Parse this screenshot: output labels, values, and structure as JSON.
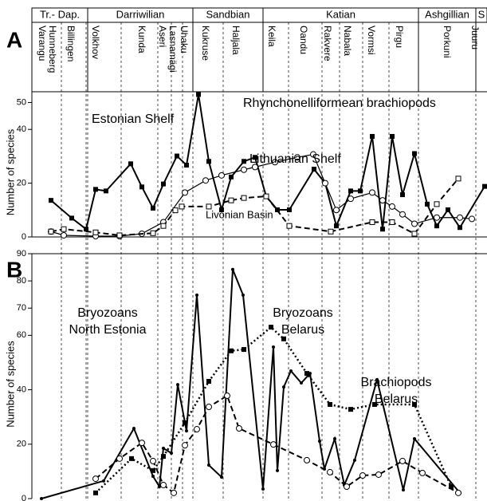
{
  "stages": [
    "Tr.- Dap.",
    "Darriwilian",
    "Sandbian",
    "Katian",
    "Ashgillian",
    "S"
  ],
  "regional_stages": [
    "Varangu",
    "Hunneberg",
    "Billingen",
    "Volkhov",
    "Kunda",
    "Aseri",
    "Lasnamägi",
    "Uhaku",
    "Kukruse",
    "Haljala",
    "Keila",
    "Oandu",
    "Rakvere",
    "Nabala",
    "Vormsi",
    "Pirgu",
    "Porkuni",
    "Juuru"
  ],
  "chart_data": [
    {
      "type": "line",
      "panel_label": "A",
      "ylabel": "Number of species",
      "title": "Rhynchonelliformean brachiopods",
      "xlim": [
        40,
        611
      ],
      "ylim": [
        0,
        54
      ],
      "yticks": [
        0,
        20,
        40,
        50
      ],
      "series": [
        {
          "name": "Estonian Shelf",
          "color": "#000000",
          "line_style": "solid",
          "marker": "filled-square",
          "x": [
            64,
            90,
            108,
            120,
            133,
            164,
            178,
            192,
            205,
            222,
            234,
            249,
            262,
            278,
            290,
            306,
            320,
            334,
            348,
            363,
            394,
            408,
            422,
            440,
            452,
            467,
            480,
            492,
            505,
            520,
            536,
            548,
            562,
            577,
            608
          ],
          "values": [
            13.6,
            7.0,
            2.9,
            17.7,
            17.1,
            27.2,
            18.6,
            10.7,
            19.7,
            30.1,
            26.7,
            53.0,
            28.1,
            10.1,
            22.3,
            28.1,
            29.6,
            15.1,
            10.1,
            10.1,
            25.2,
            20.0,
            4.1,
            17.1,
            17.1,
            37.4,
            2.9,
            37.4,
            15.7,
            31.0,
            12.2,
            4.1,
            10.1,
            3.5,
            18.8
          ]
        },
        {
          "name": "Lithuanian Shelf",
          "color": "#000000",
          "line_style": "thin",
          "marker": "open-circle",
          "x": [
            64,
            80,
            120,
            150,
            178,
            205,
            232,
            258,
            278,
            306,
            320,
            345,
            373,
            393,
            408,
            422,
            440,
            467,
            480,
            492,
            505,
            520,
            548,
            577,
            592
          ],
          "values": [
            2.0,
            0.6,
            0.3,
            0.3,
            1.2,
            5.5,
            16.5,
            21.0,
            22.9,
            25.0,
            26.0,
            27.8,
            29.6,
            30.7,
            20.0,
            10.0,
            14.2,
            16.5,
            13.6,
            11.3,
            8.4,
            4.9,
            7.2,
            7.2,
            6.7
          ]
        },
        {
          "name": "Livonian Basin",
          "color": "#000000",
          "line_style": "dashed",
          "marker": "open-square",
          "x": [
            64,
            80,
            120,
            150,
            192,
            205,
            220,
            228,
            262,
            290,
            306,
            334,
            363,
            415,
            467,
            492,
            520,
            548,
            575
          ],
          "values": [
            2.0,
            2.9,
            1.7,
            0.6,
            1.4,
            4.1,
            9.9,
            11.3,
            11.3,
            13.6,
            14.5,
            15.1,
            4.1,
            2.0,
            5.5,
            5.5,
            1.2,
            12.2,
            21.7
          ]
        }
      ]
    },
    {
      "type": "line",
      "panel_label": "B",
      "ylabel": "Number of species",
      "xlim": [
        40,
        611
      ],
      "ylim": [
        0,
        90
      ],
      "yticks": [
        0,
        20,
        40,
        60,
        70,
        80,
        90
      ],
      "series": [
        {
          "name": [
            "Bryozoans",
            "North Estonia"
          ],
          "color": "#000000",
          "line_style": "solid",
          "marker": "dot",
          "x": [
            52,
            130,
            168,
            192,
            200,
            205,
            215,
            223,
            234,
            247,
            262,
            278,
            292,
            305,
            330,
            343,
            348,
            356,
            365,
            378,
            389,
            401,
            407,
            420,
            432,
            445,
            473,
            506,
            520,
            577
          ],
          "values": [
            0,
            6.5,
            25.8,
            8.2,
            4.4,
            18.5,
            16.7,
            41.9,
            24.9,
            74.8,
            12.3,
            7.9,
            84.2,
            74.8,
            3.5,
            55.7,
            10.3,
            41.0,
            46.9,
            42.5,
            46.0,
            21.1,
            10.9,
            22.0,
            5.0,
            14.1,
            43.7,
            3.2,
            22.0,
            2.1
          ]
        },
        {
          "name": [
            "Bryozoans",
            "Belarus"
          ],
          "color": "#000000",
          "line_style": "dotted",
          "marker": "filled-square",
          "x": [
            120,
            165,
            192,
            205,
            232,
            262,
            290,
            306,
            340,
            356,
            385,
            414,
            440,
            470,
            520,
            566
          ],
          "values": [
            2.1,
            14.7,
            10.3,
            15.5,
            27.9,
            43.1,
            54.3,
            54.8,
            63.0,
            58.7,
            46.0,
            34.6,
            32.8,
            34.6,
            34.6,
            4.4
          ]
        },
        {
          "name": [
            "Brachiopods",
            "Belarus"
          ],
          "color": "#000000",
          "line_style": "dashed",
          "marker": "open-circle",
          "x": [
            120,
            150,
            178,
            192,
            205,
            218,
            232,
            247,
            262,
            285,
            300,
            343,
            385,
            414,
            435,
            455,
            475,
            505,
            530,
            575
          ],
          "values": [
            7.3,
            14.7,
            20.5,
            13.8,
            5.0,
            2.1,
            19.6,
            25.5,
            33.7,
            37.8,
            25.8,
            19.9,
            14.1,
            9.7,
            4.4,
            8.5,
            8.8,
            13.8,
            9.4,
            2.1
          ]
        }
      ]
    }
  ]
}
